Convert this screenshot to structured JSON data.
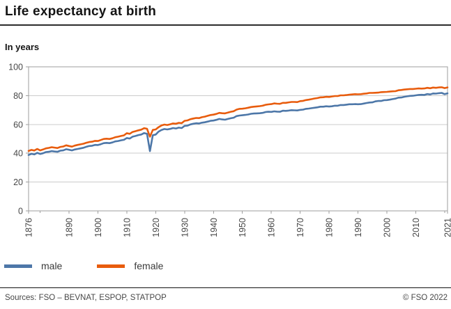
{
  "header": {
    "title": "Life expectancy at birth",
    "subtitle": "In years"
  },
  "footer": {
    "sources": "Sources: FSO – BEVNAT, ESPOP, STATPOP",
    "copyright": "© FSO 2022"
  },
  "chart_data": {
    "type": "line",
    "title": "Life expectancy at birth",
    "ylabel": "In years",
    "x_range": [
      1876,
      2021
    ],
    "ylim": [
      0,
      100
    ],
    "y_ticks": [
      0,
      20,
      40,
      60,
      80,
      100
    ],
    "x_ticks": [
      1876,
      1890,
      1900,
      1910,
      1920,
      1930,
      1940,
      1950,
      1960,
      1970,
      1980,
      1990,
      2000,
      2010,
      2021
    ],
    "x_minor_ticks": [
      1880,
      2020
    ],
    "grid": true,
    "grid_color": "#cbcbcb",
    "axis_color": "#9e9e9e",
    "tick_label_color": "#474747",
    "legend_position": "bottom-left",
    "annotations": [
      "deep dip in 1918 (Spanish flu), small dip in 2020"
    ],
    "series": [
      {
        "name": "male",
        "color": "#4d77a8",
        "values": [
          38.8,
          39.6,
          39.2,
          40.3,
          39.5,
          40.0,
          40.8,
          41.0,
          41.5,
          41.2,
          41.0,
          41.8,
          42.0,
          42.8,
          42.4,
          42.0,
          42.6,
          43.0,
          43.4,
          43.8,
          44.5,
          45.0,
          45.2,
          45.8,
          45.7,
          46.3,
          47.0,
          47.2,
          47.0,
          47.5,
          48.2,
          48.5,
          49.0,
          49.3,
          50.6,
          50.2,
          51.5,
          52.0,
          52.6,
          53.0,
          54.0,
          53.5,
          41.5,
          52.5,
          53.0,
          55.0,
          56.2,
          56.8,
          56.5,
          56.9,
          57.5,
          57.2,
          57.8,
          57.5,
          59.0,
          59.2,
          60.0,
          60.5,
          60.8,
          60.7,
          61.2,
          61.5,
          62.0,
          62.5,
          62.7,
          63.2,
          63.8,
          63.5,
          63.3,
          63.8,
          64.3,
          64.7,
          65.8,
          66.2,
          66.4,
          66.6,
          66.9,
          67.4,
          67.6,
          67.7,
          67.8,
          68.0,
          68.6,
          68.8,
          68.7,
          69.1,
          68.9,
          68.8,
          69.5,
          69.4,
          69.6,
          69.9,
          69.8,
          69.7,
          70.1,
          70.3,
          70.8,
          71.0,
          71.3,
          71.6,
          71.9,
          72.3,
          72.3,
          72.6,
          72.4,
          72.6,
          73.0,
          73.0,
          73.5,
          73.5,
          73.7,
          74.0,
          74.0,
          74.1,
          74.0,
          74.1,
          74.5,
          74.9,
          75.2,
          75.3,
          76.0,
          76.3,
          76.3,
          76.8,
          76.9,
          77.2,
          77.6,
          77.9,
          78.6,
          78.7,
          79.2,
          79.5,
          79.8,
          79.9,
          80.2,
          80.5,
          80.6,
          80.5,
          81.1,
          80.8,
          81.5,
          81.4,
          81.7,
          81.9,
          81.0,
          81.6
        ]
      },
      {
        "name": "female",
        "color": "#e85c0d",
        "values": [
          41.6,
          42.3,
          41.9,
          43.0,
          42.0,
          42.6,
          43.4,
          43.7,
          44.2,
          43.9,
          43.6,
          44.4,
          44.7,
          45.5,
          45.0,
          44.6,
          45.3,
          45.8,
          46.2,
          46.6,
          47.3,
          47.8,
          48.0,
          48.6,
          48.5,
          49.2,
          49.9,
          50.1,
          49.9,
          50.4,
          51.1,
          51.5,
          52.0,
          52.4,
          53.9,
          53.5,
          54.8,
          55.3,
          55.9,
          56.4,
          57.4,
          57.0,
          51.5,
          56.2,
          56.5,
          58.1,
          59.3,
          59.9,
          59.6,
          60.1,
          60.7,
          60.5,
          61.1,
          60.9,
          62.5,
          62.8,
          63.6,
          64.1,
          64.5,
          64.4,
          65.0,
          65.4,
          66.0,
          66.5,
          66.8,
          67.3,
          68.0,
          67.8,
          67.7,
          68.2,
          68.8,
          69.2,
          70.3,
          70.8,
          70.9,
          71.2,
          71.6,
          72.1,
          72.3,
          72.5,
          72.7,
          73.0,
          73.6,
          73.9,
          74.1,
          74.6,
          74.4,
          74.3,
          75.0,
          75.0,
          75.3,
          75.6,
          75.6,
          75.5,
          76.2,
          76.4,
          76.9,
          77.2,
          77.6,
          78.0,
          78.3,
          78.8,
          78.9,
          79.2,
          79.1,
          79.4,
          79.7,
          79.7,
          80.2,
          80.2,
          80.4,
          80.7,
          80.8,
          81.0,
          80.9,
          81.0,
          81.3,
          81.5,
          81.9,
          81.9,
          82.0,
          82.1,
          82.4,
          82.5,
          82.6,
          82.8,
          83.0,
          83.1,
          83.7,
          83.9,
          84.2,
          84.4,
          84.6,
          84.6,
          84.8,
          85.0,
          84.9,
          85.0,
          85.4,
          85.1,
          85.6,
          85.4,
          85.7,
          85.8,
          85.2,
          85.7
        ]
      }
    ]
  }
}
